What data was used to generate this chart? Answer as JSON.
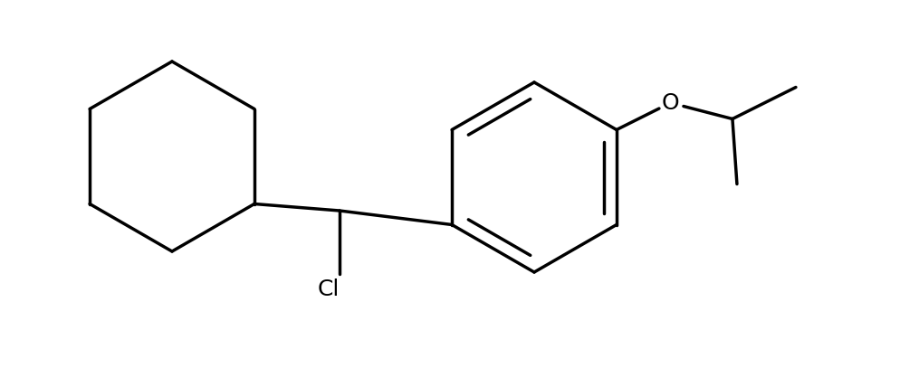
{
  "background_color": "#ffffff",
  "line_color": "#000000",
  "line_width": 2.5,
  "label_Cl": "Cl",
  "label_O": "O",
  "font_size_atom": 18,
  "figsize": [
    9.94,
    4.28
  ],
  "dpi": 100,
  "xlim": [
    0,
    9.94
  ],
  "ylim": [
    0,
    4.28
  ]
}
